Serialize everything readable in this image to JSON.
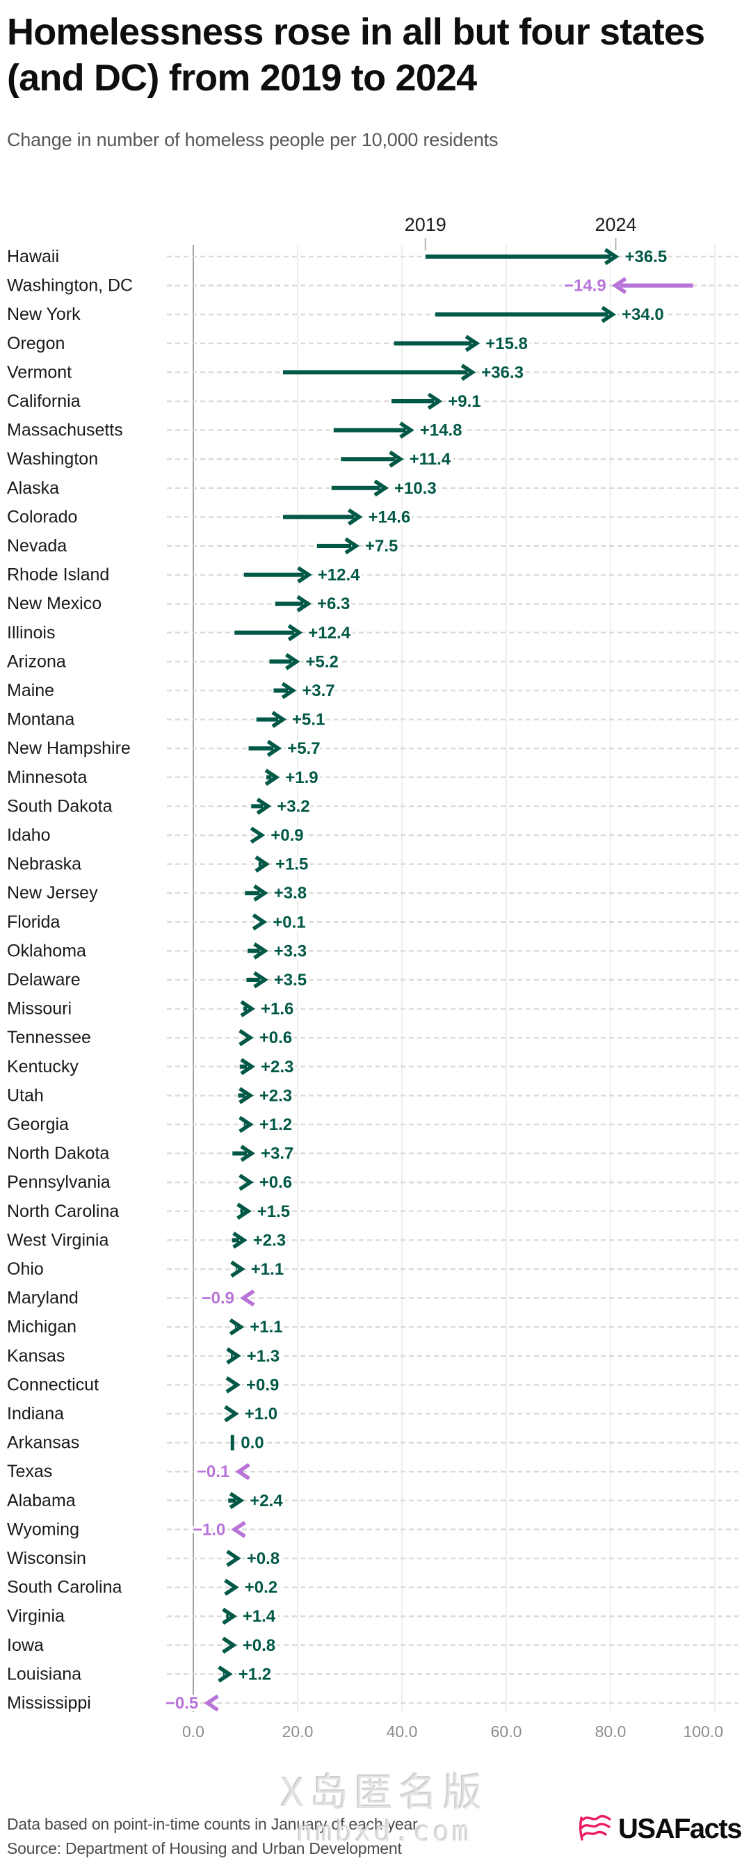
{
  "title": "Homelessness rose in all but four states (and DC) from 2019 to 2024",
  "subtitle": "Change in number of homeless people per 10,000 residents",
  "header": {
    "start_year": "2019",
    "end_year": "2024"
  },
  "chart_data": {
    "type": "arrow",
    "title": "Homelessness rose in all but four states (and DC) from 2019 to 2024",
    "subtitle": "Change in number of homeless people per 10,000 residents",
    "unit": "homeless people per 10,000 residents",
    "xlim": [
      0,
      100
    ],
    "x_ticks": [
      "0.0",
      "20.0",
      "40.0",
      "60.0",
      "80.0",
      "100.0"
    ],
    "x_tick_values": [
      0,
      20,
      40,
      60,
      80,
      100
    ],
    "grid": true,
    "colors": {
      "increase": "#025846",
      "decrease": "#b873d8",
      "zero": "#025846"
    },
    "states": [
      {
        "name": "Hawaii",
        "label": "+36.5",
        "change": 36.5,
        "v2019": 44.5,
        "v2024": 81.0
      },
      {
        "name": "Washington, DC",
        "label": "−14.9",
        "change": -14.9,
        "v2019": 95.8,
        "v2024": 80.9
      },
      {
        "name": "New York",
        "label": "+34.0",
        "change": 34.0,
        "v2019": 46.4,
        "v2024": 80.4
      },
      {
        "name": "Oregon",
        "label": "+15.8",
        "change": 15.8,
        "v2019": 38.5,
        "v2024": 54.3
      },
      {
        "name": "Vermont",
        "label": "+36.3",
        "change": 36.3,
        "v2019": 17.2,
        "v2024": 53.5
      },
      {
        "name": "California",
        "label": "+9.1",
        "change": 9.1,
        "v2019": 38.0,
        "v2024": 47.1
      },
      {
        "name": "Massachusetts",
        "label": "+14.8",
        "change": 14.8,
        "v2019": 26.9,
        "v2024": 41.7
      },
      {
        "name": "Washington",
        "label": "+11.4",
        "change": 11.4,
        "v2019": 28.3,
        "v2024": 39.7
      },
      {
        "name": "Alaska",
        "label": "+10.3",
        "change": 10.3,
        "v2019": 26.5,
        "v2024": 36.8
      },
      {
        "name": "Colorado",
        "label": "+14.6",
        "change": 14.6,
        "v2019": 17.2,
        "v2024": 31.8
      },
      {
        "name": "Nevada",
        "label": "+7.5",
        "change": 7.5,
        "v2019": 23.7,
        "v2024": 31.2
      },
      {
        "name": "Rhode Island",
        "label": "+12.4",
        "change": 12.4,
        "v2019": 9.7,
        "v2024": 22.1
      },
      {
        "name": "New Mexico",
        "label": "+6.3",
        "change": 6.3,
        "v2019": 15.7,
        "v2024": 22.0
      },
      {
        "name": "Illinois",
        "label": "+12.4",
        "change": 12.4,
        "v2019": 7.9,
        "v2024": 20.3
      },
      {
        "name": "Arizona",
        "label": "+5.2",
        "change": 5.2,
        "v2019": 14.6,
        "v2024": 19.8
      },
      {
        "name": "Maine",
        "label": "+3.7",
        "change": 3.7,
        "v2019": 15.4,
        "v2024": 19.1
      },
      {
        "name": "Montana",
        "label": "+5.1",
        "change": 5.1,
        "v2019": 12.1,
        "v2024": 17.2
      },
      {
        "name": "New Hampshire",
        "label": "+5.7",
        "change": 5.7,
        "v2019": 10.6,
        "v2024": 16.3
      },
      {
        "name": "Minnesota",
        "label": "+1.9",
        "change": 1.9,
        "v2019": 14.0,
        "v2024": 15.9
      },
      {
        "name": "South Dakota",
        "label": "+3.2",
        "change": 3.2,
        "v2019": 11.1,
        "v2024": 14.3
      },
      {
        "name": "Idaho",
        "label": "+0.9",
        "change": 0.9,
        "v2019": 12.2,
        "v2024": 13.1
      },
      {
        "name": "Nebraska",
        "label": "+1.5",
        "change": 1.5,
        "v2019": 12.5,
        "v2024": 14.0
      },
      {
        "name": "New Jersey",
        "label": "+3.8",
        "change": 3.8,
        "v2019": 9.9,
        "v2024": 13.7
      },
      {
        "name": "Florida",
        "label": "+0.1",
        "change": 0.1,
        "v2019": 13.4,
        "v2024": 13.5
      },
      {
        "name": "Oklahoma",
        "label": "+3.3",
        "change": 3.3,
        "v2019": 10.4,
        "v2024": 13.7
      },
      {
        "name": "Delaware",
        "label": "+3.5",
        "change": 3.5,
        "v2019": 10.2,
        "v2024": 13.7
      },
      {
        "name": "Missouri",
        "label": "+1.6",
        "change": 1.6,
        "v2019": 9.6,
        "v2024": 11.2
      },
      {
        "name": "Tennessee",
        "label": "+0.6",
        "change": 0.6,
        "v2019": 10.3,
        "v2024": 10.9
      },
      {
        "name": "Kentucky",
        "label": "+2.3",
        "change": 2.3,
        "v2019": 8.9,
        "v2024": 11.2
      },
      {
        "name": "Utah",
        "label": "+2.3",
        "change": 2.3,
        "v2019": 8.6,
        "v2024": 10.9
      },
      {
        "name": "Georgia",
        "label": "+1.2",
        "change": 1.2,
        "v2019": 9.7,
        "v2024": 10.9
      },
      {
        "name": "North Dakota",
        "label": "+3.7",
        "change": 3.7,
        "v2019": 7.5,
        "v2024": 11.2
      },
      {
        "name": "Pennsylvania",
        "label": "+0.6",
        "change": 0.6,
        "v2019": 10.3,
        "v2024": 10.9
      },
      {
        "name": "North Carolina",
        "label": "+1.5",
        "change": 1.5,
        "v2019": 9.0,
        "v2024": 10.5
      },
      {
        "name": "West Virginia",
        "label": "+2.3",
        "change": 2.3,
        "v2019": 7.4,
        "v2024": 9.7
      },
      {
        "name": "Ohio",
        "label": "+1.1",
        "change": 1.1,
        "v2019": 8.2,
        "v2024": 9.3
      },
      {
        "name": "Maryland",
        "label": "−0.9",
        "change": -0.9,
        "v2019": 10.5,
        "v2024": 9.6
      },
      {
        "name": "Michigan",
        "label": "+1.1",
        "change": 1.1,
        "v2019": 8.0,
        "v2024": 9.1
      },
      {
        "name": "Kansas",
        "label": "+1.3",
        "change": 1.3,
        "v2019": 7.2,
        "v2024": 8.5
      },
      {
        "name": "Connecticut",
        "label": "+0.9",
        "change": 0.9,
        "v2019": 7.5,
        "v2024": 8.4
      },
      {
        "name": "Indiana",
        "label": "+1.0",
        "change": 1.0,
        "v2019": 7.1,
        "v2024": 8.1
      },
      {
        "name": "Arkansas",
        "label": "0.0",
        "change": 0.0,
        "v2019": 7.5,
        "v2024": 7.5
      },
      {
        "name": "Texas",
        "label": "−0.1",
        "change": -0.1,
        "v2019": 8.8,
        "v2024": 8.7
      },
      {
        "name": "Alabama",
        "label": "+2.4",
        "change": 2.4,
        "v2019": 6.7,
        "v2024": 9.1
      },
      {
        "name": "Wyoming",
        "label": "−1.0",
        "change": -1.0,
        "v2019": 8.9,
        "v2024": 7.9
      },
      {
        "name": "Wisconsin",
        "label": "+0.8",
        "change": 0.8,
        "v2019": 7.7,
        "v2024": 8.5
      },
      {
        "name": "South Carolina",
        "label": "+0.2",
        "change": 0.2,
        "v2019": 7.9,
        "v2024": 8.1
      },
      {
        "name": "Virginia",
        "label": "+1.4",
        "change": 1.4,
        "v2019": 6.3,
        "v2024": 7.7
      },
      {
        "name": "Iowa",
        "label": "+0.8",
        "change": 0.8,
        "v2019": 6.9,
        "v2024": 7.7
      },
      {
        "name": "Louisiana",
        "label": "+1.2",
        "change": 1.2,
        "v2019": 5.7,
        "v2024": 6.9
      },
      {
        "name": "Mississippi",
        "label": "−0.5",
        "change": -0.5,
        "v2019": 3.2,
        "v2024": 2.7
      }
    ]
  },
  "footer": {
    "note": "Data based on point-in-time counts in January of each year.",
    "source": "Source: Department of Housing and Urban Development",
    "brand": "USAFacts"
  },
  "watermark": {
    "line1": "X岛匿名版",
    "line2": "nmbxd.com"
  }
}
